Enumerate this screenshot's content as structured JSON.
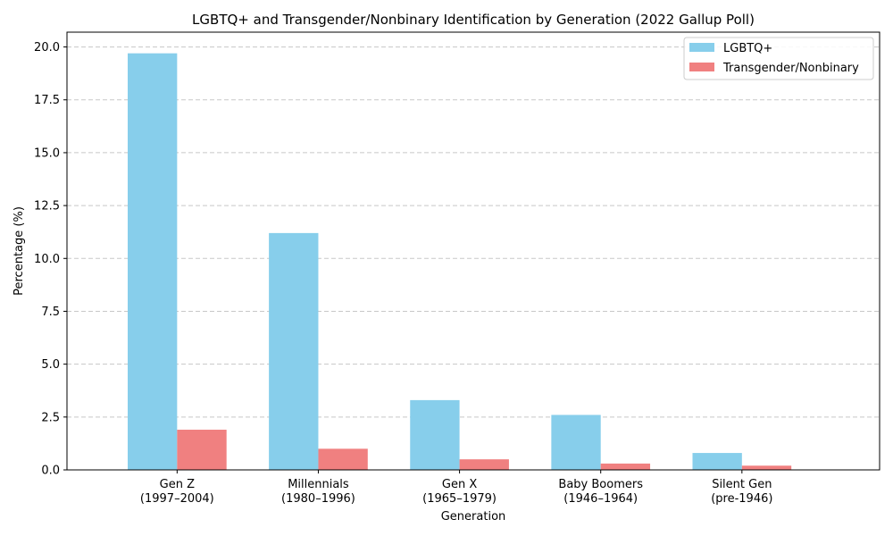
{
  "chart_data": {
    "type": "bar",
    "title": "LGBTQ+ and Transgender/Nonbinary Identification by Generation (2022 Gallup Poll)",
    "xlabel": "Generation",
    "ylabel": "Percentage (%)",
    "categories": [
      [
        "Gen Z",
        "(1997–2004)"
      ],
      [
        "Millennials",
        "(1980–1996)"
      ],
      [
        "Gen X",
        "(1965–1979)"
      ],
      [
        "Baby Boomers",
        "(1946–1964)"
      ],
      [
        "Silent Gen",
        "(pre-1946)"
      ]
    ],
    "series": [
      {
        "name": "LGBTQ+",
        "color": "#87ceeb",
        "values": [
          19.7,
          11.2,
          3.3,
          2.6,
          0.8
        ]
      },
      {
        "name": "Transgender/Nonbinary",
        "color": "#f08080",
        "values": [
          1.9,
          1.0,
          0.5,
          0.3,
          0.2
        ]
      }
    ],
    "ylim": [
      0,
      20.7
    ],
    "yticks": [
      "0.0",
      "2.5",
      "5.0",
      "7.5",
      "10.0",
      "12.5",
      "15.0",
      "17.5",
      "20.0"
    ],
    "grid": "y-dashed",
    "legend": "top-right"
  }
}
